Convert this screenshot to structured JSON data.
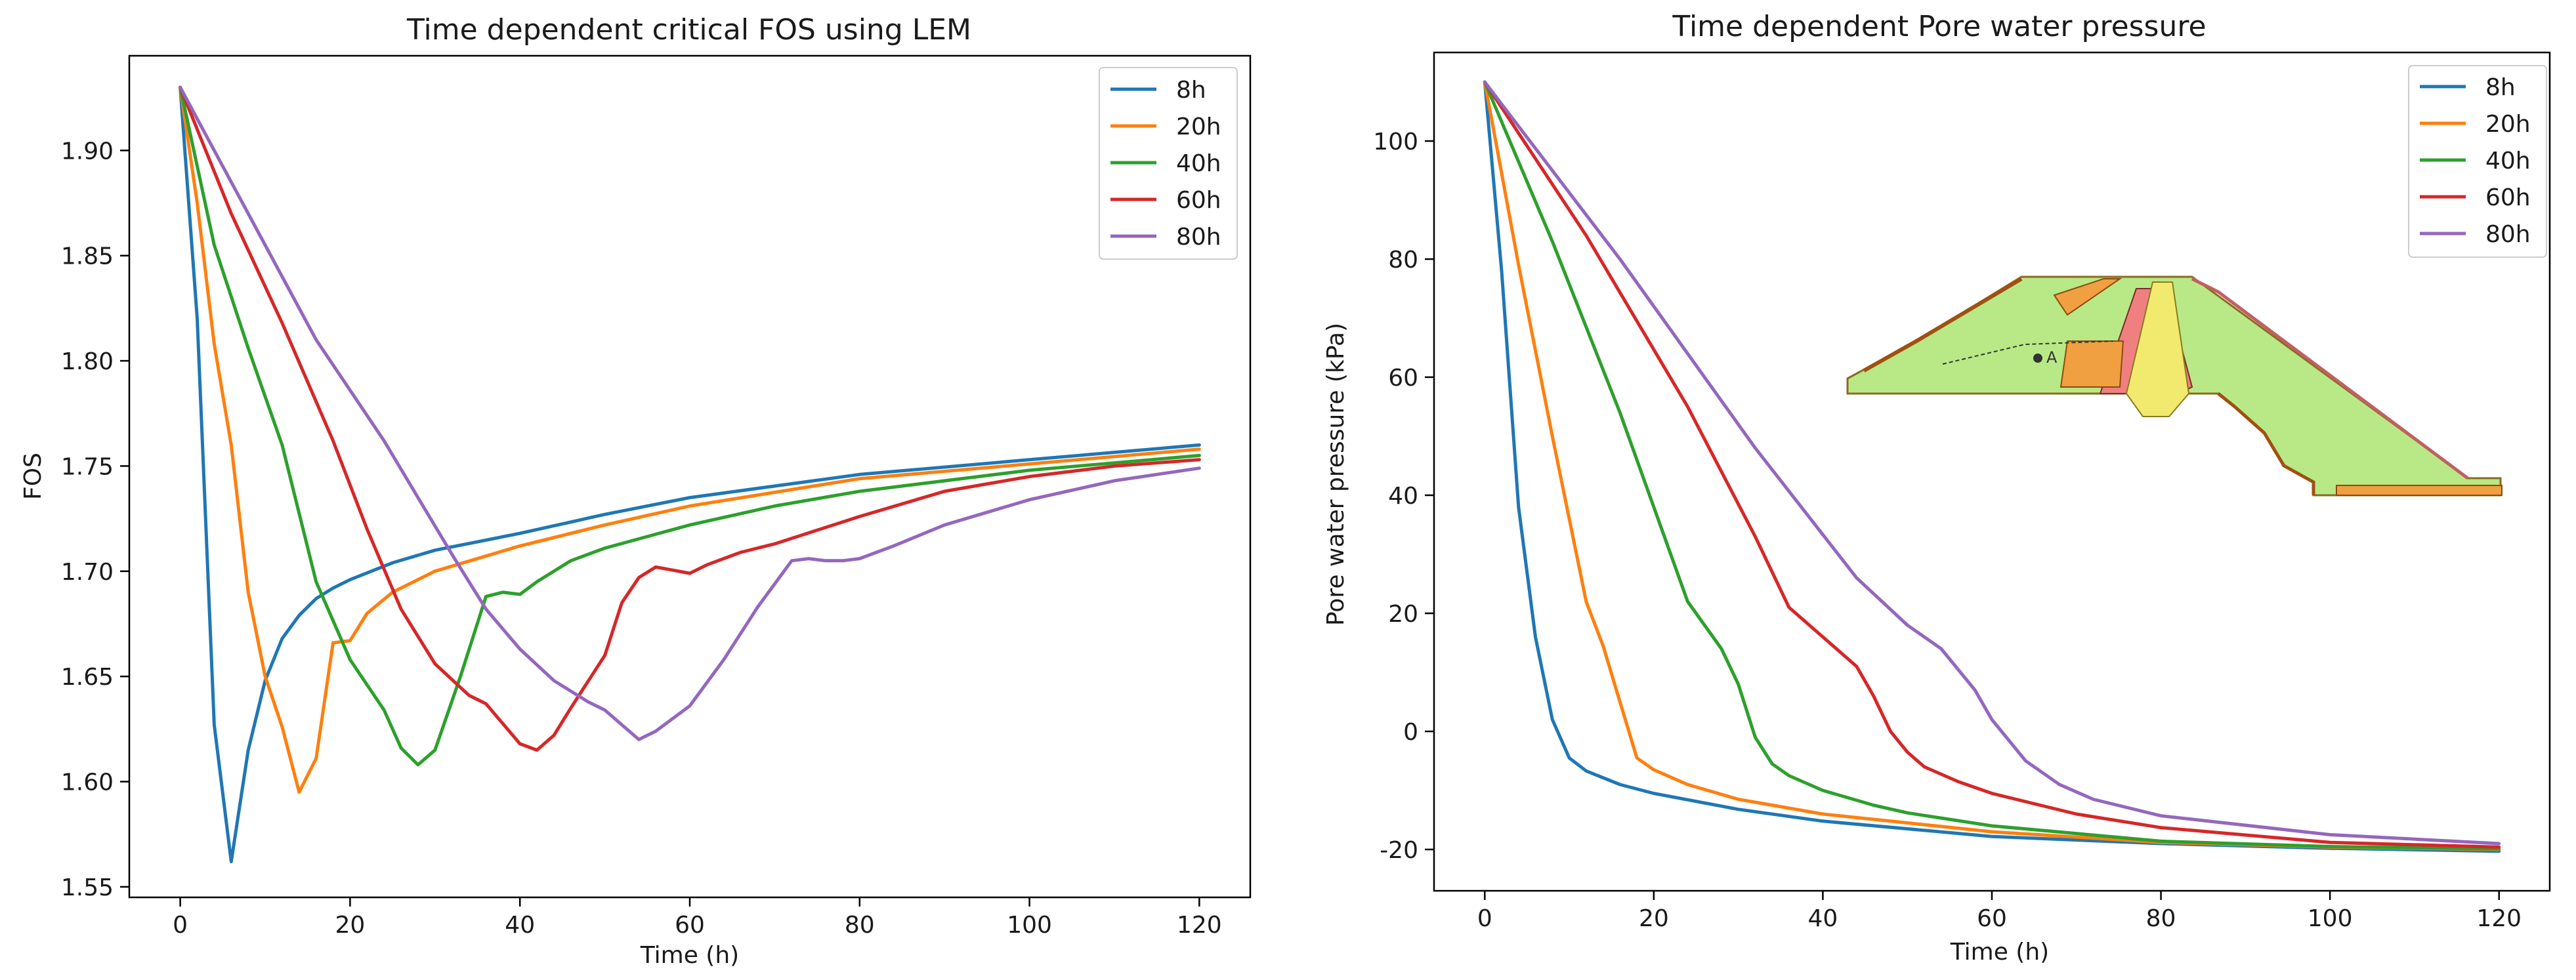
{
  "chart_data": [
    {
      "type": "line",
      "title": "Time dependent critical FOS using LEM",
      "xlabel": "Time (h)",
      "ylabel": "FOS",
      "xlim": [
        -6,
        126
      ],
      "ylim": [
        1.545,
        1.945
      ],
      "xticks": [
        0,
        20,
        40,
        60,
        80,
        100,
        120
      ],
      "yticks": [
        1.55,
        1.6,
        1.65,
        1.7,
        1.75,
        1.8,
        1.85,
        1.9
      ],
      "ytick_labels": [
        "1.55",
        "1.60",
        "1.65",
        "1.70",
        "1.75",
        "1.80",
        "1.85",
        "1.90"
      ],
      "legend_position": "top-right",
      "series": [
        {
          "name": "8h",
          "color": "#1f77b4",
          "x": [
            0,
            2,
            4,
            6,
            8,
            10,
            12,
            14,
            16,
            18,
            20,
            25,
            30,
            40,
            50,
            60,
            80,
            100,
            120
          ],
          "y": [
            1.93,
            1.82,
            1.627,
            1.562,
            1.615,
            1.648,
            1.668,
            1.679,
            1.687,
            1.692,
            1.696,
            1.704,
            1.71,
            1.718,
            1.727,
            1.735,
            1.746,
            1.753,
            1.76
          ]
        },
        {
          "name": "20h",
          "color": "#ff7f0e",
          "x": [
            0,
            2,
            4,
            6,
            8,
            10,
            12,
            14,
            16,
            18,
            20,
            22,
            25,
            30,
            40,
            50,
            60,
            80,
            100,
            120
          ],
          "y": [
            1.93,
            1.875,
            1.808,
            1.76,
            1.69,
            1.65,
            1.626,
            1.595,
            1.611,
            1.666,
            1.667,
            1.68,
            1.69,
            1.7,
            1.712,
            1.722,
            1.731,
            1.744,
            1.751,
            1.758
          ]
        },
        {
          "name": "40h",
          "color": "#2ca02c",
          "x": [
            0,
            4,
            8,
            12,
            16,
            20,
            24,
            26,
            28,
            30,
            33,
            36,
            38,
            40,
            42,
            46,
            50,
            60,
            70,
            80,
            100,
            120
          ],
          "y": [
            1.93,
            1.855,
            1.806,
            1.76,
            1.695,
            1.658,
            1.634,
            1.616,
            1.608,
            1.615,
            1.65,
            1.688,
            1.69,
            1.689,
            1.695,
            1.705,
            1.711,
            1.722,
            1.731,
            1.738,
            1.748,
            1.755
          ]
        },
        {
          "name": "60h",
          "color": "#d62728",
          "x": [
            0,
            6,
            12,
            18,
            22,
            26,
            30,
            34,
            36,
            40,
            42,
            44,
            46,
            50,
            52,
            54,
            56,
            60,
            62,
            66,
            70,
            80,
            90,
            100,
            110,
            120
          ],
          "y": [
            1.93,
            1.87,
            1.818,
            1.762,
            1.72,
            1.682,
            1.656,
            1.641,
            1.637,
            1.618,
            1.615,
            1.622,
            1.635,
            1.66,
            1.685,
            1.697,
            1.702,
            1.699,
            1.703,
            1.709,
            1.713,
            1.726,
            1.738,
            1.745,
            1.75,
            1.753
          ]
        },
        {
          "name": "80h",
          "color": "#9467bd",
          "x": [
            0,
            8,
            16,
            24,
            28,
            32,
            36,
            40,
            44,
            48,
            50,
            54,
            56,
            58,
            60,
            64,
            68,
            70,
            72,
            74,
            76,
            78,
            80,
            84,
            90,
            100,
            110,
            120
          ],
          "y": [
            1.93,
            1.87,
            1.81,
            1.762,
            1.735,
            1.708,
            1.682,
            1.663,
            1.648,
            1.638,
            1.634,
            1.62,
            1.624,
            1.63,
            1.636,
            1.658,
            1.683,
            1.694,
            1.705,
            1.706,
            1.705,
            1.705,
            1.706,
            1.712,
            1.722,
            1.734,
            1.743,
            1.749
          ]
        }
      ]
    },
    {
      "type": "line",
      "title": "Time dependent Pore water pressure",
      "xlabel": "Time (h)",
      "ylabel": "Pore water pressure (kPa)",
      "xlim": [
        -6,
        126
      ],
      "ylim": [
        -27,
        115
      ],
      "xticks": [
        0,
        20,
        40,
        60,
        80,
        100,
        120
      ],
      "yticks": [
        -20,
        0,
        20,
        40,
        60,
        80,
        100
      ],
      "legend_position": "top-right",
      "inset": "dam cross-section with point A",
      "inset_label": "A",
      "series": [
        {
          "name": "8h",
          "color": "#1f77b4",
          "x": [
            0,
            2,
            4,
            6,
            8,
            10,
            12,
            16,
            20,
            30,
            40,
            60,
            80,
            100,
            120
          ],
          "y": [
            110,
            78,
            38,
            16,
            2,
            -4.5,
            -6.7,
            -9,
            -10.5,
            -13.2,
            -15.2,
            -17.8,
            -19,
            -19.8,
            -20.3
          ]
        },
        {
          "name": "20h",
          "color": "#ff7f0e",
          "x": [
            0,
            4,
            8,
            12,
            14,
            16,
            18,
            20,
            24,
            30,
            40,
            60,
            80,
            100,
            120
          ],
          "y": [
            110,
            79,
            50,
            22,
            14.5,
            5,
            -4.5,
            -6.5,
            -9,
            -11.5,
            -14,
            -17,
            -18.8,
            -19.6,
            -20
          ]
        },
        {
          "name": "40h",
          "color": "#2ca02c",
          "x": [
            0,
            8,
            16,
            24,
            28,
            30,
            32,
            34,
            36,
            40,
            46,
            50,
            60,
            80,
            100,
            120
          ],
          "y": [
            110,
            83,
            54,
            22,
            14,
            8,
            -1,
            -5.5,
            -7.5,
            -10,
            -12.5,
            -13.8,
            -16,
            -18.6,
            -19.5,
            -19.9
          ]
        },
        {
          "name": "60h",
          "color": "#d62728",
          "x": [
            0,
            12,
            24,
            32,
            36,
            40,
            44,
            46,
            48,
            50,
            52,
            56,
            60,
            70,
            80,
            100,
            120
          ],
          "y": [
            110,
            84,
            55,
            33,
            21,
            16,
            11,
            6,
            0,
            -3.5,
            -6,
            -8.5,
            -10.5,
            -14,
            -16.3,
            -18.8,
            -19.6
          ]
        },
        {
          "name": "80h",
          "color": "#9467bd",
          "x": [
            0,
            16,
            32,
            44,
            50,
            54,
            58,
            60,
            64,
            68,
            72,
            80,
            100,
            120
          ],
          "y": [
            110,
            80,
            48,
            26,
            18,
            14,
            7,
            2,
            -5,
            -9,
            -11.5,
            -14.3,
            -17.5,
            -19
          ]
        }
      ]
    }
  ]
}
